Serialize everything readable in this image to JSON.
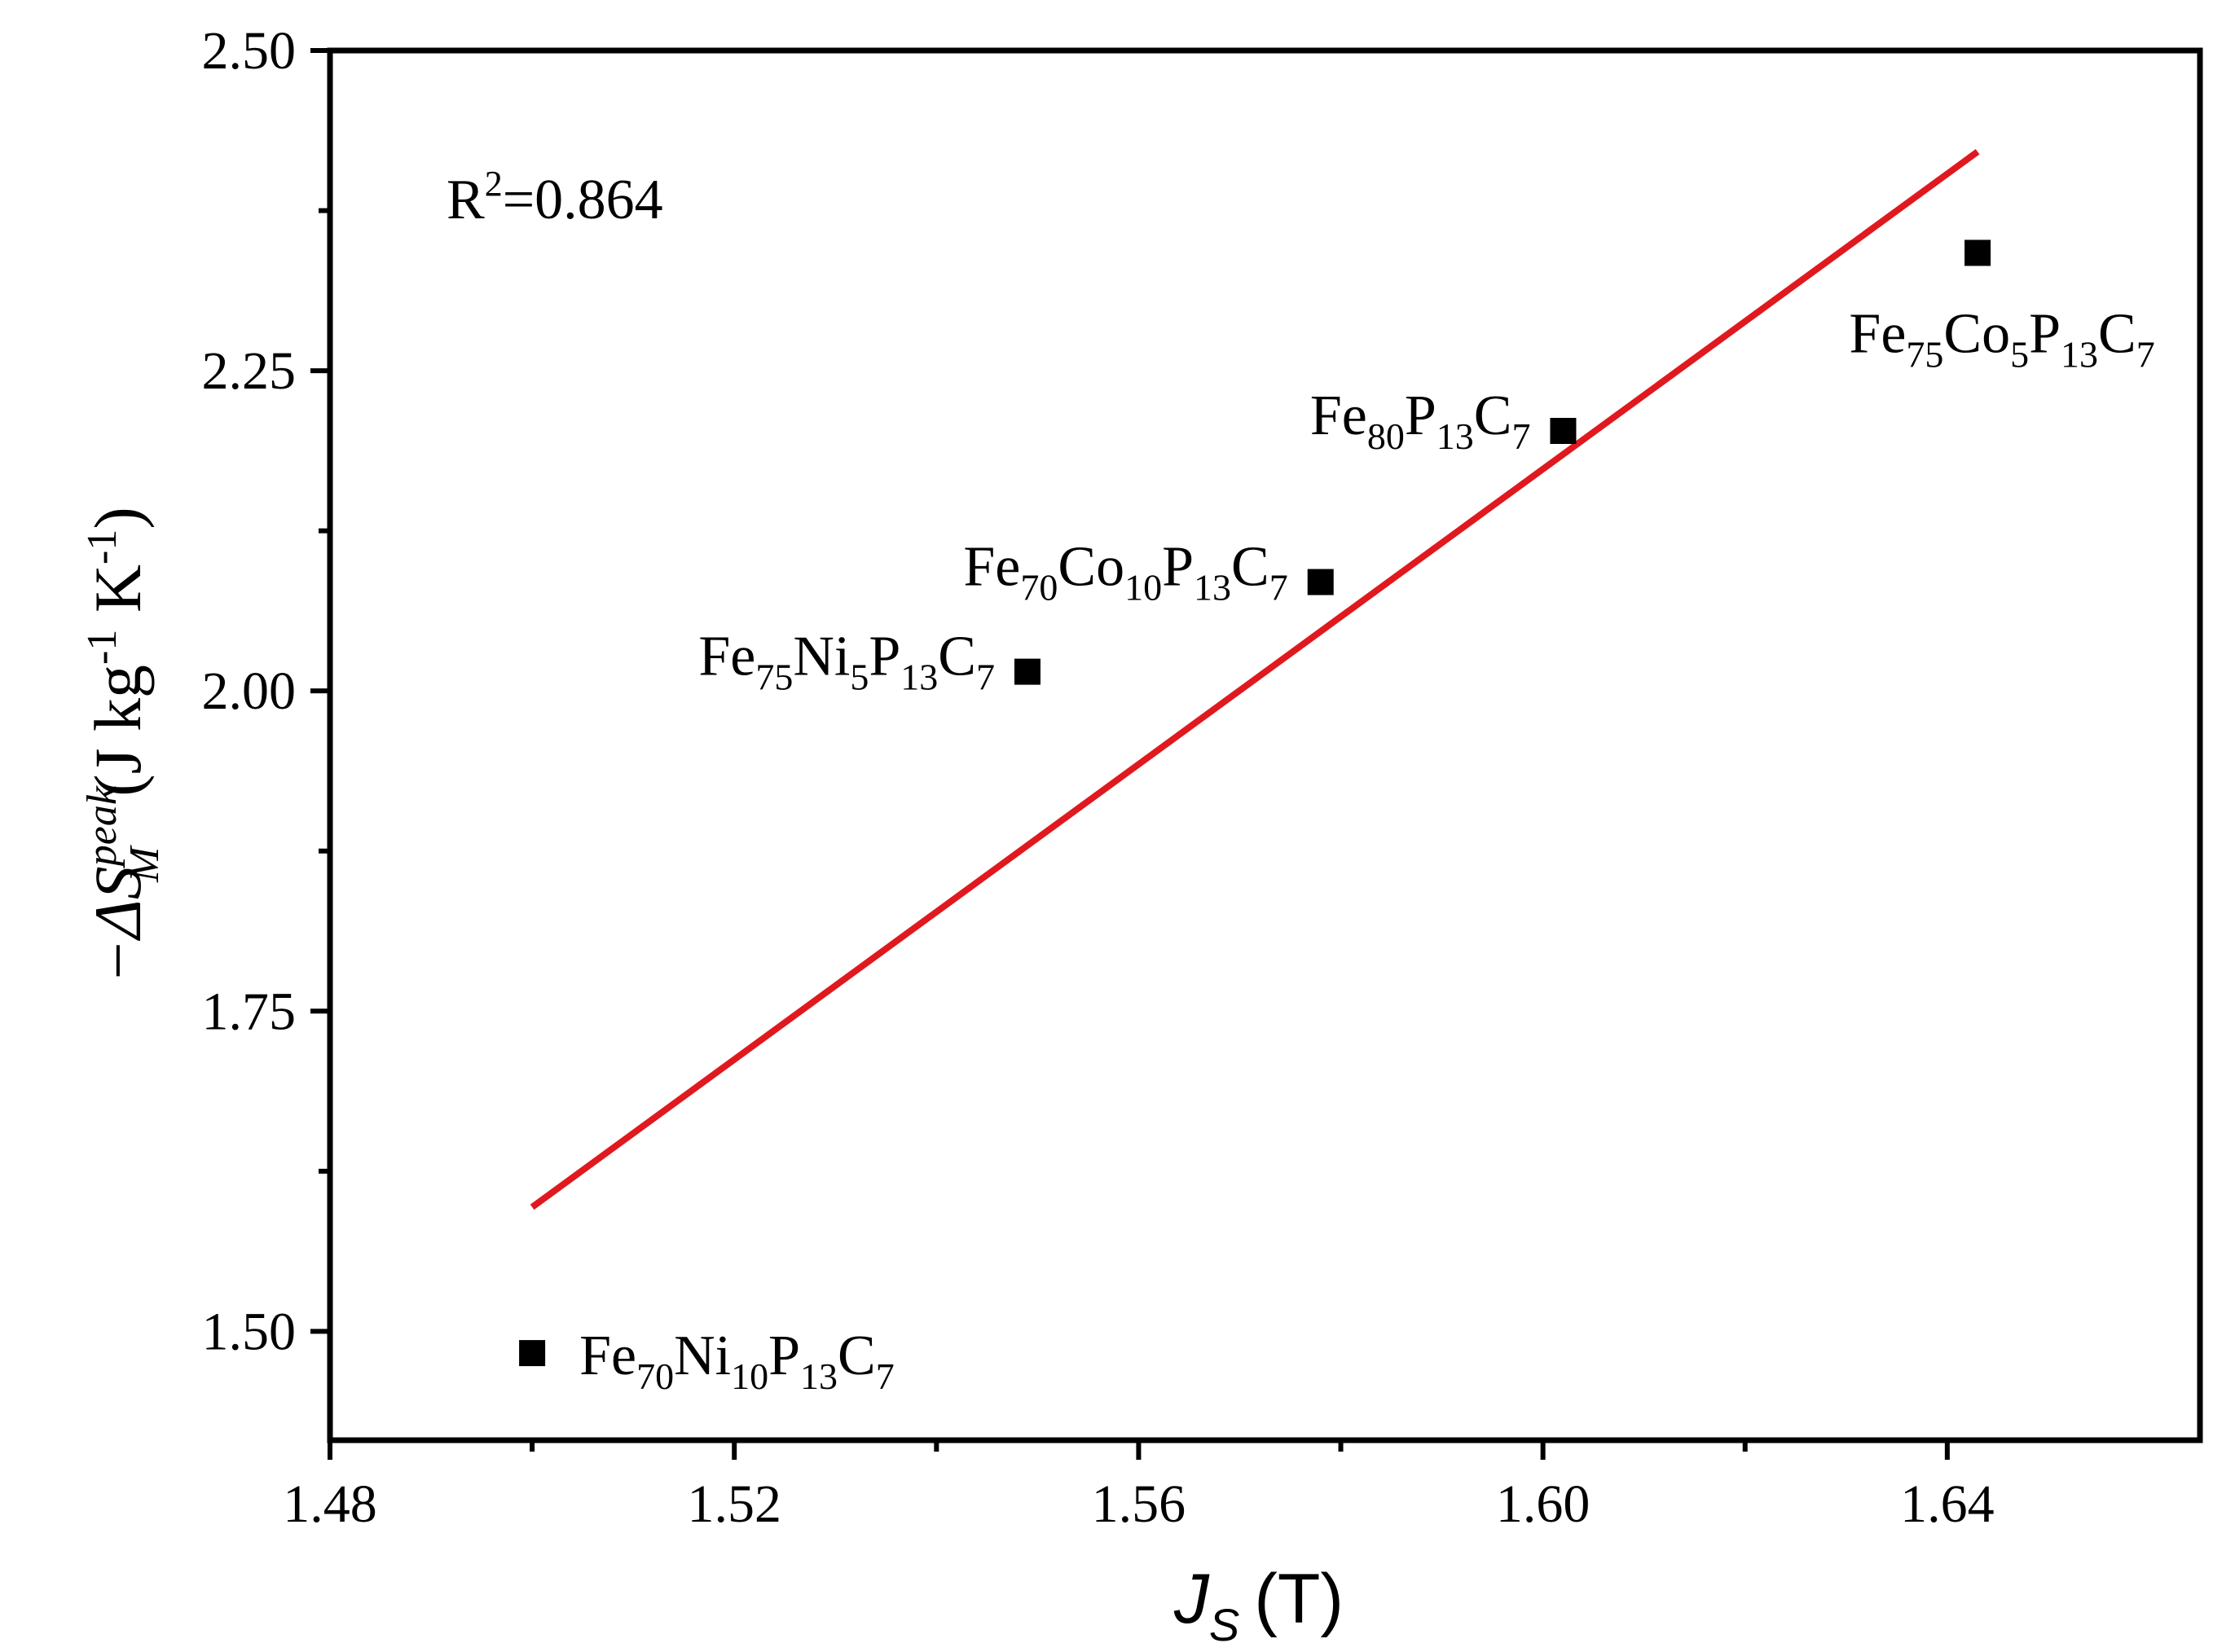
{
  "chart_data": {
    "type": "scatter",
    "title": "",
    "xlabel": {
      "symbol": "J",
      "subscript": "S",
      "unit": "(T)"
    },
    "ylabel": {
      "prefix": "−ΔS",
      "superscript": "peak",
      "subscript": "M",
      "unit_open": "(J kg",
      "exp1": "-1",
      "unit_mid": " K",
      "exp2": "-1",
      "unit_close": ")"
    },
    "xlim": [
      1.48,
      1.665
    ],
    "ylim": [
      1.415,
      2.5
    ],
    "x_ticks": [
      1.48,
      1.52,
      1.56,
      1.6,
      1.64
    ],
    "x_tick_labels": [
      "1.48",
      "1.52",
      "1.56",
      "1.60",
      "1.64"
    ],
    "x_minor_ticks": [
      1.5,
      1.54,
      1.58,
      1.62
    ],
    "y_ticks": [
      1.5,
      1.75,
      2.0,
      2.25,
      2.5
    ],
    "y_tick_labels": [
      "1.50",
      "1.75",
      "2.00",
      "2.25",
      "2.50"
    ],
    "y_minor_ticks": [
      1.625,
      1.875,
      2.125,
      2.375
    ],
    "points": [
      {
        "x": 1.5,
        "y": 1.483,
        "label": [
          [
            "Fe",
            ""
          ],
          [
            "70",
            "sub"
          ],
          [
            "Ni",
            ""
          ],
          [
            "10",
            "sub"
          ],
          [
            "P",
            ""
          ],
          [
            "13",
            "sub"
          ],
          [
            "C",
            ""
          ],
          [
            "7",
            "sub"
          ]
        ],
        "label_side": "right"
      },
      {
        "x": 1.549,
        "y": 2.015,
        "label": [
          [
            "Fe",
            ""
          ],
          [
            "75",
            "sub"
          ],
          [
            "Ni",
            ""
          ],
          [
            "5",
            "sub"
          ],
          [
            "P",
            ""
          ],
          [
            "13",
            "sub"
          ],
          [
            "C",
            ""
          ],
          [
            "7",
            "sub"
          ]
        ],
        "label_side": "left"
      },
      {
        "x": 1.578,
        "y": 2.085,
        "label": [
          [
            "Fe",
            ""
          ],
          [
            "70",
            "sub"
          ],
          [
            "Co",
            ""
          ],
          [
            "10",
            "sub"
          ],
          [
            "P",
            ""
          ],
          [
            "13",
            "sub"
          ],
          [
            "C",
            ""
          ],
          [
            "7",
            "sub"
          ]
        ],
        "label_side": "left"
      },
      {
        "x": 1.602,
        "y": 2.203,
        "label": [
          [
            "Fe",
            ""
          ],
          [
            "80",
            "sub"
          ],
          [
            "P",
            ""
          ],
          [
            "13",
            "sub"
          ],
          [
            "C",
            ""
          ],
          [
            "7",
            "sub"
          ]
        ],
        "label_side": "left"
      },
      {
        "x": 1.643,
        "y": 2.342,
        "label": [
          [
            "Fe",
            ""
          ],
          [
            "75",
            "sub"
          ],
          [
            "Co",
            ""
          ],
          [
            "5",
            "sub"
          ],
          [
            "P",
            ""
          ],
          [
            "13",
            "sub"
          ],
          [
            "C",
            ""
          ],
          [
            "7",
            "sub"
          ]
        ],
        "label_side": "below"
      }
    ],
    "fit_line": {
      "x": [
        1.5,
        1.643
      ],
      "y": [
        1.597,
        2.421
      ],
      "color": "#e0191f"
    },
    "annotation": {
      "base": "R",
      "sup": "2",
      "rest": "=0.864"
    },
    "marker_color": "#000000",
    "grid": false,
    "legend": "none"
  }
}
